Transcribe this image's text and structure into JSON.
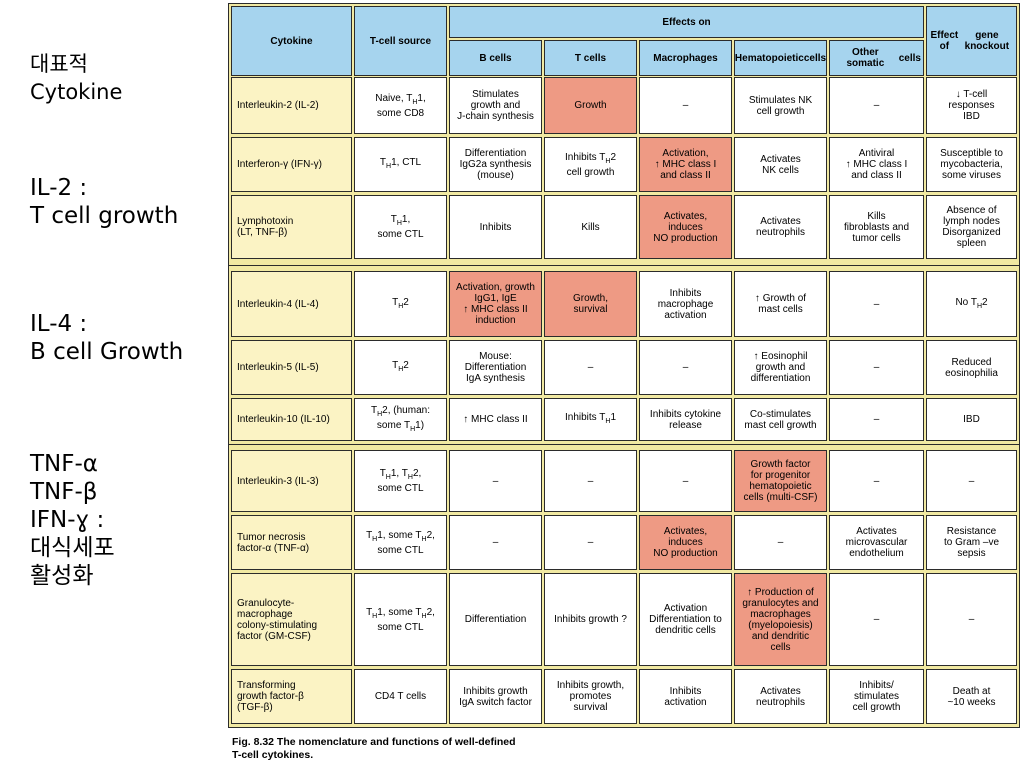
{
  "side_notes": {
    "title": [
      "대표적",
      "Cytokine"
    ],
    "il2": [
      "IL-2 :",
      " T cell growth"
    ],
    "il4": [
      "IL-4 :",
      "B cell Growth"
    ],
    "tnf": [
      "TNF-α",
      "TNF-β",
      "IFN-ɣ :",
      " 대식세포",
      " 활성화"
    ]
  },
  "table": {
    "headers": {
      "cytokine": "Cytokine",
      "source": "T-cell source",
      "effects_on": "Effects on",
      "knockout": [
        "Effect of",
        "gene knockout"
      ],
      "b": "B cells",
      "t": "T cells",
      "mac": "Macrophages",
      "hema": [
        "Hematopoietic",
        "cells"
      ],
      "other": [
        "Other somatic",
        "cells"
      ]
    },
    "rows": [
      {
        "cytokine": [
          "Interleukin-2  (IL-2)"
        ],
        "source": [
          "Naive, TH1,",
          "some CD8"
        ],
        "b": [
          "Stimulates",
          "growth and",
          "J-chain synthesis"
        ],
        "t": [
          "Growth"
        ],
        "mac": [
          "–"
        ],
        "hema": [
          "Stimulates NK",
          "cell growth"
        ],
        "other": [
          "–"
        ],
        "ko": [
          "↓ T-cell",
          "responses",
          "IBD"
        ],
        "highlight": [
          "t"
        ]
      },
      {
        "cytokine": [
          "Interferon-γ  (IFN-γ)"
        ],
        "source": [
          "TH1,  CTL"
        ],
        "b": [
          "Differentiation",
          "IgG2a synthesis",
          "(mouse)"
        ],
        "t": [
          "Inhibits TH2",
          "cell growth"
        ],
        "mac": [
          "Activation,",
          "↑ MHC class I",
          "and class II"
        ],
        "hema": [
          "Activates",
          "NK cells"
        ],
        "other": [
          "Antiviral",
          "↑ MHC class I",
          "and class II"
        ],
        "ko": [
          "Susceptible to",
          "mycobacteria,",
          "some viruses"
        ],
        "highlight": [
          "mac"
        ]
      },
      {
        "cytokine": [
          "Lymphotoxin",
          "(LT,  TNF-β)"
        ],
        "source": [
          "TH1,",
          "some CTL"
        ],
        "b": [
          "Inhibits"
        ],
        "t": [
          "Kills"
        ],
        "mac": [
          "Activates,",
          "induces",
          "NO production"
        ],
        "hema": [
          "Activates",
          "neutrophils"
        ],
        "other": [
          "Kills",
          "fibroblasts and",
          "tumor cells"
        ],
        "ko": [
          "Absence of",
          "lymph nodes",
          "Disorganized",
          "spleen"
        ],
        "highlight": [
          "mac"
        ]
      },
      {
        "cytokine": [
          "Interleukin-4  (IL-4)"
        ],
        "source": [
          "TH2"
        ],
        "b": [
          "Activation, growth",
          "IgG1, IgE",
          "↑ MHC class II",
          "induction"
        ],
        "t": [
          "Growth,",
          "survival"
        ],
        "mac": [
          "Inhibits",
          "macrophage",
          "activation"
        ],
        "hema": [
          "↑ Growth of",
          "mast cells"
        ],
        "other": [
          "–"
        ],
        "ko": [
          "No  TH2"
        ],
        "highlight": [
          "b",
          "t"
        ]
      },
      {
        "cytokine": [
          "Interleukin-5  (IL-5)"
        ],
        "source": [
          "TH2"
        ],
        "b": [
          "Mouse:",
          "Differentiation",
          "IgA synthesis"
        ],
        "t": [
          "–"
        ],
        "mac": [
          "–"
        ],
        "hema": [
          "↑ Eosinophil",
          "growth and",
          "differentiation"
        ],
        "other": [
          "–"
        ],
        "ko": [
          "Reduced",
          "eosinophilia"
        ],
        "highlight": []
      },
      {
        "cytokine": [
          "Interleukin-10  (IL-10)"
        ],
        "source": [
          "TH2, (human:",
          "some TH1)"
        ],
        "b": [
          "↑ MHC class II"
        ],
        "t": [
          "Inhibits  TH1"
        ],
        "mac": [
          "Inhibits cytokine",
          "release"
        ],
        "hema": [
          "Co-stimulates",
          "mast cell growth"
        ],
        "other": [
          "–"
        ],
        "ko": [
          "IBD"
        ],
        "highlight": []
      },
      {
        "cytokine": [
          "Interleukin-3  (IL-3)"
        ],
        "source": [
          "TH1, TH2,",
          "some CTL"
        ],
        "b": [
          "–"
        ],
        "t": [
          "–"
        ],
        "mac": [
          "–"
        ],
        "hema": [
          "Growth factor",
          "for progenitor",
          "hematopoietic",
          "cells (multi-CSF)"
        ],
        "other": [
          "–"
        ],
        "ko": [
          "–"
        ],
        "highlight": [
          "hema"
        ]
      },
      {
        "cytokine": [
          "Tumor necrosis",
          "factor-α  (TNF-α)"
        ],
        "source": [
          "TH1, some TH2,",
          "some CTL"
        ],
        "b": [
          "–"
        ],
        "t": [
          "–"
        ],
        "mac": [
          "Activates,",
          "induces",
          "NO production"
        ],
        "hema": [
          "–"
        ],
        "other": [
          "Activates",
          "microvascular",
          "endothelium"
        ],
        "ko": [
          "Resistance",
          "to Gram –ve",
          "sepsis"
        ],
        "highlight": [
          "mac"
        ]
      },
      {
        "cytokine": [
          "Granulocyte-",
          "macrophage",
          "colony-stimulating",
          "factor  (GM-CSF)"
        ],
        "source": [
          "TH1, some TH2,",
          "some CTL"
        ],
        "b": [
          "Differentiation"
        ],
        "t": [
          "Inhibits growth ?"
        ],
        "mac": [
          "Activation",
          "Differentiation to",
          "dendritic cells"
        ],
        "hema": [
          "↑ Production of",
          "granulocytes and",
          "macrophages",
          "(myelopoiesis)",
          "and dendritic",
          "cells"
        ],
        "other": [
          "–"
        ],
        "ko": [
          "–"
        ],
        "highlight": [
          "hema"
        ]
      },
      {
        "cytokine": [
          "Transforming",
          "growth factor-β",
          "(TGF-β)"
        ],
        "source": [
          "CD4  T cells"
        ],
        "b": [
          "Inhibits growth",
          "IgA switch factor"
        ],
        "t": [
          "Inhibits growth,",
          "promotes",
          "survival"
        ],
        "mac": [
          "Inhibits",
          "activation"
        ],
        "hema": [
          "Activates",
          "neutrophils"
        ],
        "other": [
          "Inhibits/",
          "stimulates",
          "cell growth"
        ],
        "ko": [
          "Death at",
          "~10  weeks"
        ],
        "highlight": []
      }
    ]
  },
  "caption": [
    "Fig. 8.32 The nomenclature and functions of well-defined",
    "T-cell cytokines."
  ]
}
